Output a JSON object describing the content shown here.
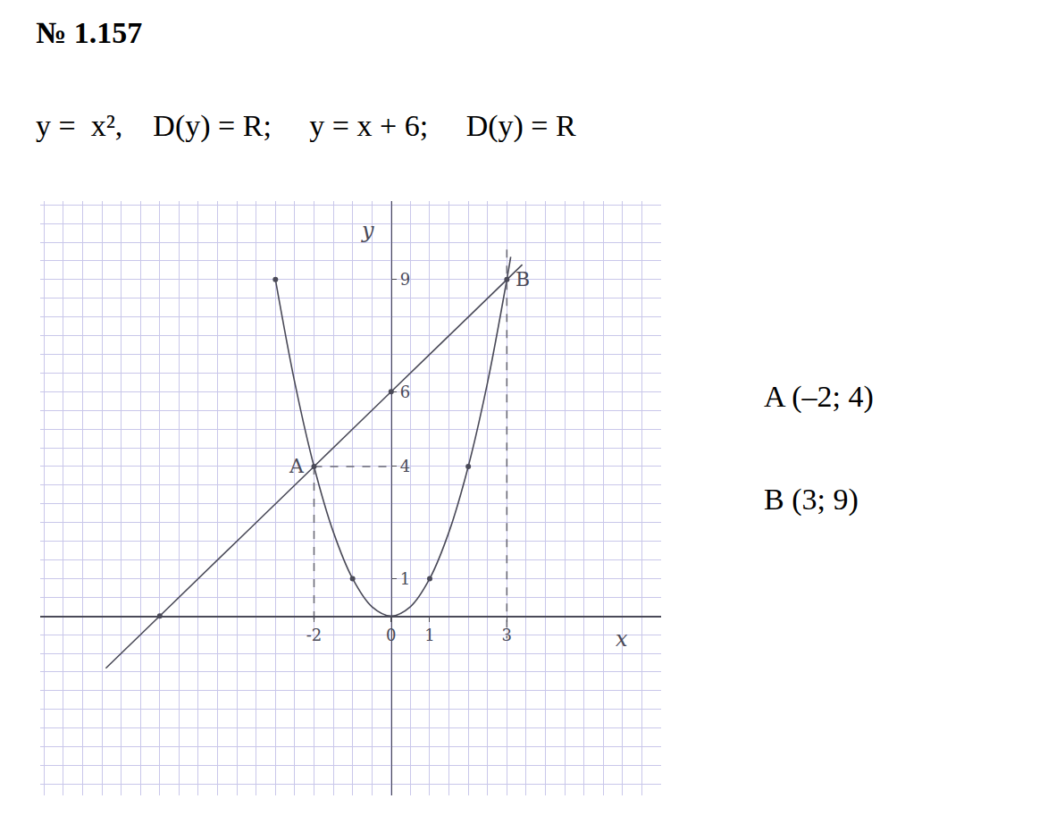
{
  "chart_data": {
    "type": "line",
    "title": "№ 1.157",
    "subtitle": "y =  x²,    D(y) = R;     y = x + 6;     D(y) = R",
    "xlabel": "x",
    "ylabel": "y",
    "xlim": [
      -9.1,
      7.0
    ],
    "ylim": [
      -4.8,
      11.1
    ],
    "xticks": [
      -2,
      0,
      1,
      3
    ],
    "yticks": [
      1,
      4,
      6,
      9
    ],
    "grid": true,
    "series": [
      {
        "type": "line",
        "line_style": "solid",
        "marker": "none",
        "color": "#4a4a58",
        "x": [
          -3,
          -2.5,
          -2,
          -1.5,
          -1,
          -0.5,
          0,
          0.5,
          1,
          1.5,
          2,
          2.5,
          3,
          3.1
        ],
        "values": [
          9,
          6.25,
          4,
          2.25,
          1,
          0.25,
          0,
          0.25,
          1,
          2.25,
          4,
          6.25,
          9,
          9.61
        ]
      },
      {
        "type": "line",
        "line_style": "solid",
        "marker": "none",
        "color": "#4a4a58",
        "x": [
          -7.4,
          -6,
          -2,
          0,
          3,
          3.4
        ],
        "values": [
          -1.4,
          0,
          4,
          6,
          9,
          9.4
        ]
      },
      {
        "type": "line",
        "line_style": "dashed",
        "marker": "none",
        "color": "#6a6a78",
        "x": [
          -2,
          -2
        ],
        "values": [
          4,
          -0.3
        ]
      },
      {
        "type": "line",
        "line_style": "dashed",
        "marker": "none",
        "color": "#6a6a78",
        "x": [
          -2,
          0
        ],
        "values": [
          4,
          4
        ]
      },
      {
        "type": "line",
        "line_style": "dashed",
        "marker": "none",
        "color": "#6a6a78",
        "x": [
          3,
          3
        ],
        "values": [
          9.8,
          -0.6
        ]
      },
      {
        "type": "scatter",
        "marker": "circle",
        "color": "#4a4a58",
        "x": [
          -6,
          -2,
          0,
          3,
          -3,
          -1,
          1,
          2
        ],
        "values": [
          0,
          4,
          6,
          9,
          9,
          1,
          1,
          4
        ]
      }
    ],
    "annotations": [
      {
        "text": "A",
        "x": -2,
        "y": 4
      },
      {
        "text": "B",
        "x": 3,
        "y": 9
      },
      {
        "text": "A (–2; 4)"
      },
      {
        "text": "B (3; 9)"
      }
    ]
  }
}
